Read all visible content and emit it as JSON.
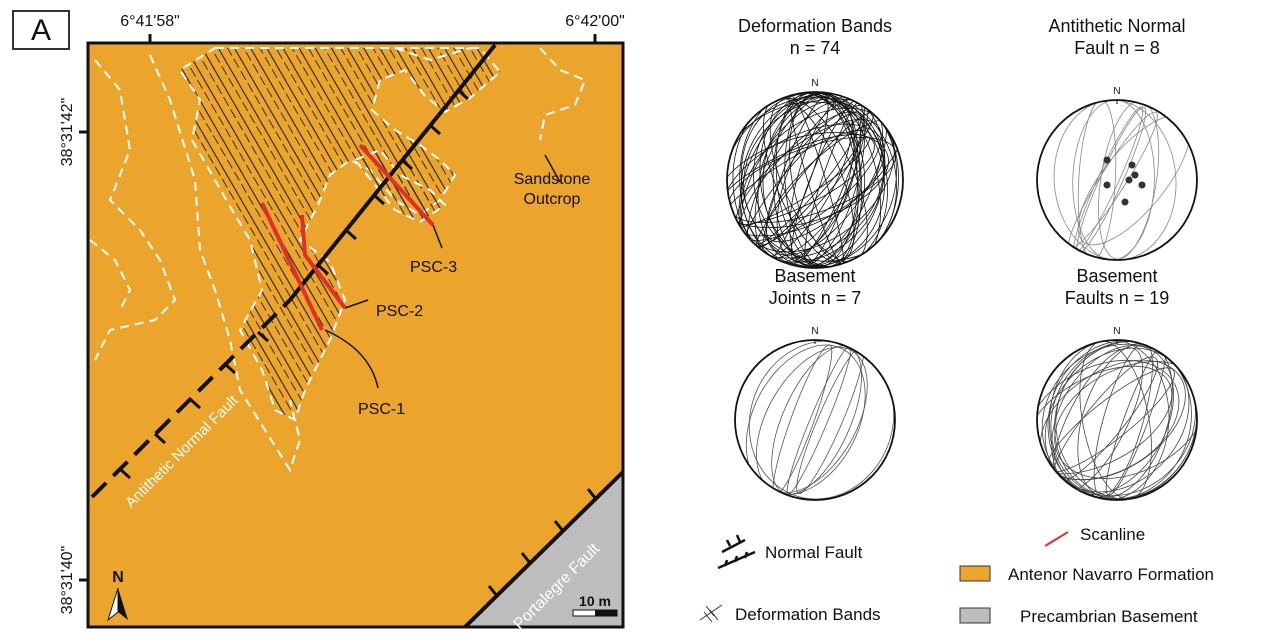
{
  "panel_label": "A",
  "map": {
    "longitude_labels": [
      "6°41'58\"",
      "6°42'00\""
    ],
    "latitude_labels": [
      "38°31'42\"",
      "38°31'40\""
    ],
    "labels": {
      "sandstone_outcrop": [
        "Sandstone",
        "Outcrop"
      ],
      "scanlines": [
        "PSC-3",
        "PSC-2",
        "PSC-1"
      ],
      "antithetic_fault": "Antithetic Normal Fault",
      "portalegre_fault": "Portalegre Fault",
      "scale": "10 m",
      "north": "N"
    }
  },
  "stereonets": [
    {
      "title": [
        "Deformation Bands",
        "n = 74"
      ],
      "north": "N"
    },
    {
      "title": [
        "Antithetic Normal",
        "Fault n = 8"
      ],
      "north": "N"
    },
    {
      "title": [
        "Basement",
        "Joints n = 7"
      ],
      "north": "N"
    },
    {
      "title": [
        "Basement",
        "Faults n = 19"
      ],
      "north": "N"
    }
  ],
  "legend": [
    "Normal Fault",
    "Deformation Bands",
    "Scanline",
    "Antenor Navarro Formation",
    "Precambrian Basement"
  ]
}
